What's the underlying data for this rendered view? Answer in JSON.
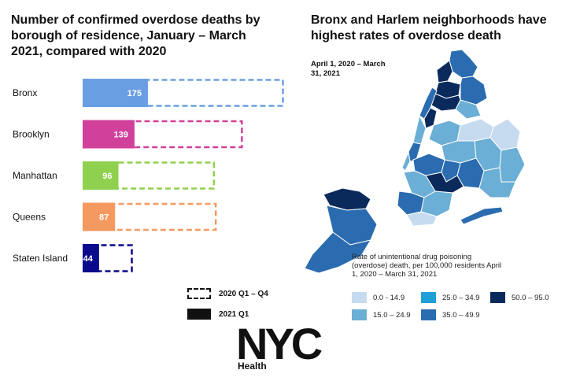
{
  "left_title": "Number of confirmed overdose deaths by borough of residence, January – March 2021, compared with 2020",
  "right_title": "Bronx and Harlem neighborhoods have highest rates of overdose death",
  "map_period": "April 1, 2020 – March 31, 2021",
  "chart_data": {
    "type": "bar",
    "categories": [
      "Bronx",
      "Brooklyn",
      "Manhattan",
      "Queens",
      "Staten Island"
    ],
    "series": [
      {
        "name": "2021 Q1",
        "values": [
          175,
          139,
          96,
          87,
          44
        ]
      },
      {
        "name": "2020 Q1 – Q4",
        "values": [
          540,
          430,
          355,
          360,
          135
        ]
      }
    ],
    "colors": [
      "#6a9ee3",
      "#d1409a",
      "#8fd14f",
      "#f49a61",
      "#0a0a8c"
    ],
    "xlim": [
      0,
      560
    ],
    "grid": false,
    "legend_position": "bottom-center"
  },
  "legend": {
    "dashed_label": "2020 Q1 – Q4",
    "solid_label": "2021 Q1"
  },
  "logo": {
    "text": "NYC",
    "sub": "Health"
  },
  "map_legend": {
    "title": "Rate of unintentional drug poisoning (overdose) death, per 100,000 residents April 1, 2020 – March 31, 2021",
    "bins": [
      {
        "label": "0.0 - 14.9",
        "color": "#c6dbef"
      },
      {
        "label": "25.0 – 34.9",
        "color": "#1f9fd8"
      },
      {
        "label": "50.0 – 95.0",
        "color": "#0b2a5c"
      },
      {
        "label": "15.0 – 24.9",
        "color": "#6baed6"
      },
      {
        "label": "35.0 – 49.9",
        "color": "#2b6cb0"
      }
    ]
  }
}
